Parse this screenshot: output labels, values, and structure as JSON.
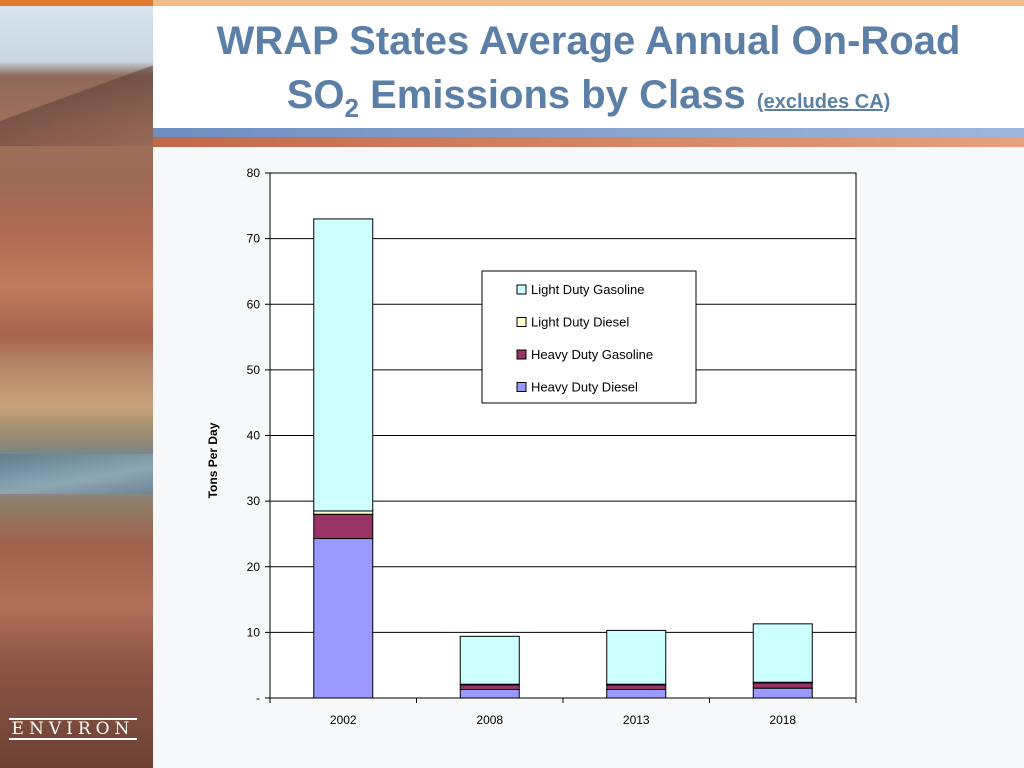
{
  "slide": {
    "title_line1": "WRAP States Average Annual On-Road",
    "title_line2_prefix": "SO",
    "title_line2_subscript": "2",
    "title_line2_suffix": " Emissions by Class ",
    "title_note": "(excludes CA)",
    "logo_text": "ENVIRON",
    "colors": {
      "title": "#5b7fa6",
      "accent_orange": "#e07a2e"
    }
  },
  "chart_data": {
    "type": "bar",
    "stacked": true,
    "categories": [
      "2002",
      "2008",
      "2013",
      "2018"
    ],
    "series": [
      {
        "name": "Heavy Duty Diesel",
        "color": "#9999ff",
        "values": [
          24.3,
          1.3,
          1.3,
          1.5
        ]
      },
      {
        "name": "Heavy Duty Gasoline",
        "color": "#993366",
        "values": [
          3.7,
          0.7,
          0.7,
          0.8
        ]
      },
      {
        "name": "Light Duty Diesel",
        "color": "#ffffcc",
        "values": [
          0.5,
          0.1,
          0.1,
          0.1
        ]
      },
      {
        "name": "Light Duty Gasoline",
        "color": "#ccffff",
        "values": [
          44.5,
          7.3,
          8.2,
          8.9
        ]
      }
    ],
    "legend_order": [
      "Light Duty Gasoline",
      "Light Duty Diesel",
      "Heavy Duty Gasoline",
      "Heavy Duty Diesel"
    ],
    "legend_position": "upper-middle",
    "ylabel": "Tons Per Day",
    "xlabel": "",
    "ylim": [
      0,
      80
    ],
    "yticks": [
      0,
      10,
      20,
      30,
      40,
      50,
      60,
      70,
      80
    ],
    "ytick_labels": [
      "-",
      "10",
      "20",
      "30",
      "40",
      "50",
      "60",
      "70",
      "80"
    ],
    "grid": true
  }
}
